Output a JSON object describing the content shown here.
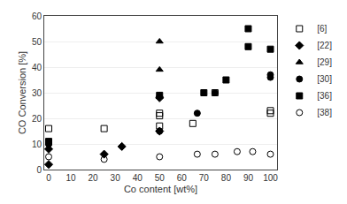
{
  "chart_data": {
    "type": "scatter",
    "xlabel": "Co content [wt%]",
    "ylabel": "CO Conversion [%]",
    "xlim": [
      -2,
      103
    ],
    "ylim": [
      0,
      60
    ],
    "xticks": [
      0,
      10,
      20,
      30,
      40,
      50,
      60,
      70,
      80,
      90,
      100
    ],
    "yticks": [
      0,
      10,
      20,
      30,
      40,
      50,
      60
    ],
    "grid": "y",
    "legend": "right",
    "series": [
      {
        "name": "[6]",
        "color": "black",
        "marker": "square-open",
        "x": [
          0,
          25,
          50,
          50,
          50,
          65,
          75,
          100,
          100
        ],
        "values": [
          16,
          16,
          22,
          21,
          17,
          18,
          30,
          23,
          22
        ]
      },
      {
        "name": "[22]",
        "color": "black",
        "marker": "diamond",
        "x": [
          0,
          0,
          25,
          33,
          50,
          50
        ],
        "values": [
          8,
          2,
          6,
          9,
          28,
          15
        ]
      },
      {
        "name": "[29]",
        "color": "black",
        "marker": "triangle-up",
        "x": [
          50,
          50,
          50
        ],
        "values": [
          50,
          39,
          29
        ]
      },
      {
        "name": "[30]",
        "color": "black",
        "marker": "circle",
        "x": [
          0,
          0,
          50,
          67,
          75,
          100,
          100
        ],
        "values": [
          10,
          10,
          15,
          22,
          30,
          36,
          37
        ]
      },
      {
        "name": "[36]",
        "color": "black",
        "marker": "square",
        "x": [
          0,
          50,
          70,
          80,
          90,
          90,
          100
        ],
        "values": [
          11,
          29,
          30,
          35,
          55,
          48,
          47
        ]
      },
      {
        "name": "[38]",
        "color": "black",
        "marker": "circle-open",
        "x": [
          0,
          25,
          50,
          67,
          75,
          85,
          92,
          100
        ],
        "values": [
          5,
          4,
          5,
          6,
          6,
          7,
          7,
          6
        ]
      }
    ]
  }
}
